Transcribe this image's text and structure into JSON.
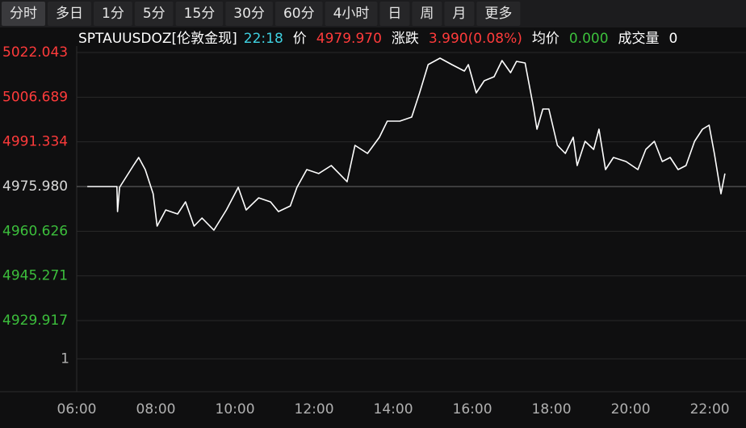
{
  "tabs": [
    "分时",
    "多日",
    "1分",
    "5分",
    "15分",
    "30分",
    "60分",
    "4小时",
    "日",
    "周",
    "月",
    "更多"
  ],
  "active_tab": 0,
  "quote": [
    {
      "text": "SPTAUUSDOZ[伦敦金现]",
      "color": "#ffffff"
    },
    {
      "text": "22:18",
      "color": "#3fd0e0"
    },
    {
      "text": "价",
      "color": "#ffffff"
    },
    {
      "text": "4979.970",
      "color": "#ff3b3b"
    },
    {
      "text": "涨跌",
      "color": "#ffffff"
    },
    {
      "text": "3.990(0.08%)",
      "color": "#ff3b3b"
    },
    {
      "text": "均价",
      "color": "#ffffff"
    },
    {
      "text": "0.000",
      "color": "#3cbf3c"
    },
    {
      "text": "成交量",
      "color": "#ffffff"
    },
    {
      "text": "0",
      "color": "#ffffff"
    }
  ],
  "chart_data": [
    {
      "type": "line",
      "x": [
        "06:16",
        "07:01",
        "07:02",
        "07:05",
        "07:26",
        "07:34",
        "07:44",
        "07:56",
        "08:02",
        "08:15",
        "08:33",
        "08:45",
        "08:58",
        "09:10",
        "09:28",
        "09:47",
        "10:05",
        "10:17",
        "10:36",
        "10:54",
        "11:06",
        "11:24",
        "11:34",
        "11:49",
        "12:07",
        "12:26",
        "12:38",
        "12:50",
        "13:02",
        "13:21",
        "13:39",
        "13:51",
        "14:10",
        "14:28",
        "14:40",
        "14:53",
        "15:11",
        "15:29",
        "15:48",
        "15:54",
        "16:06",
        "16:18",
        "16:33",
        "16:45",
        "16:58",
        "17:07",
        "17:20",
        "17:32",
        "17:38",
        "17:47",
        "17:56",
        "18:09",
        "18:21",
        "18:33",
        "18:39",
        "18:51",
        "19:04",
        "19:12",
        "19:22",
        "19:34",
        "19:53",
        "20:11",
        "20:23",
        "20:36",
        "20:48",
        "21:00",
        "21:12",
        "21:24",
        "21:37",
        "21:49",
        "21:59",
        "22:07",
        "22:13",
        "22:17",
        "22:23"
      ],
      "values": [
        4975.98,
        4975.98,
        4967.38,
        4975.71,
        4983.2,
        4985.97,
        4981.81,
        4973.49,
        4962.39,
        4967.94,
        4966.55,
        4970.71,
        4962.39,
        4965.16,
        4960.99,
        4967.94,
        4975.71,
        4967.94,
        4972.1,
        4970.71,
        4967.38,
        4969.32,
        4975.71,
        4981.81,
        4980.43,
        4983.2,
        4980.43,
        4977.65,
        4990.13,
        4987.36,
        4992.91,
        4998.46,
        4998.46,
        4999.85,
        5008.17,
        5017.88,
        5020.1,
        5017.88,
        5015.66,
        5017.88,
        5008.17,
        5012.33,
        5013.72,
        5019.27,
        5015.11,
        5018.99,
        5018.44,
        5004.01,
        4995.68,
        5002.62,
        5002.62,
        4990.13,
        4987.36,
        4992.91,
        4983.2,
        4991.52,
        4988.75,
        4995.68,
        4981.81,
        4985.97,
        4984.59,
        4981.81,
        4988.75,
        4991.52,
        4984.59,
        4985.97,
        4981.81,
        4983.2,
        4991.52,
        4995.68,
        4997.07,
        4987.36,
        4979.03,
        4973.49,
        4980.43
      ],
      "color": "#ffffff",
      "xlim": [
        "06:00",
        "22:55"
      ],
      "xticks": [
        "06:00",
        "08:00",
        "10:00",
        "12:00",
        "14:00",
        "16:00",
        "18:00",
        "20:00",
        "22:00"
      ],
      "ylim": [
        4923.53,
        5024.26
      ],
      "yticks": [
        5022.043,
        5006.689,
        4991.334,
        {
          "value": 4975.98,
          "label": "4975.980"
        },
        4960.626,
        4945.271,
        4929.917
      ],
      "reference_line": 4975.98,
      "up_color": "#ff3b3b",
      "down_color": "#3cbf3c",
      "flat_color": "#d8d8d8",
      "grid": true
    },
    {
      "type": "bar",
      "ylim": [
        0,
        1.6
      ],
      "yticks": [
        1
      ],
      "grid": true
    }
  ]
}
